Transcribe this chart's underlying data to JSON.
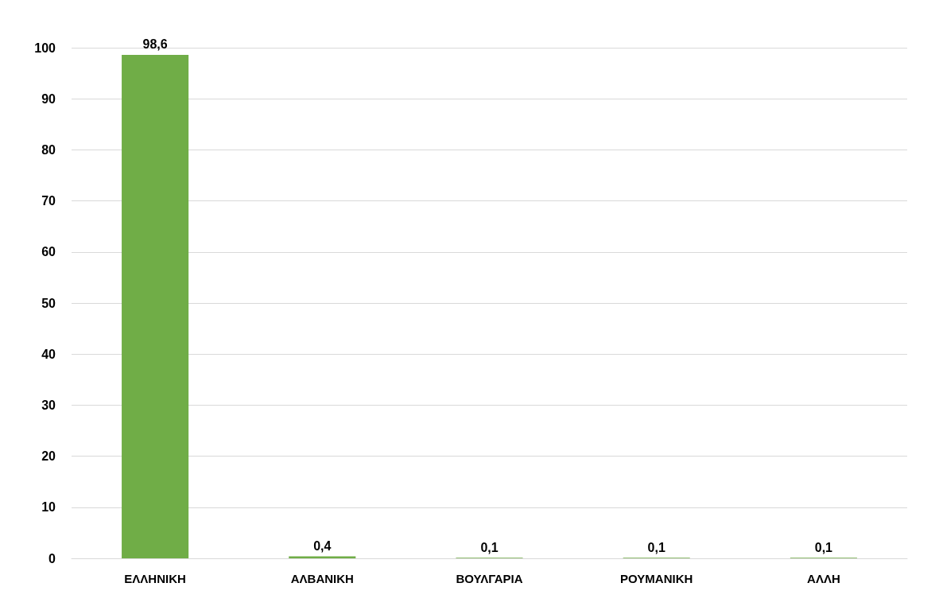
{
  "chart_data": {
    "type": "bar",
    "categories": [
      "ΕΛΛΗΝΙΚΗ",
      "ΑΛΒΑΝΙΚΗ",
      "ΒΟΥΛΓΑΡΙΑ",
      "ΡΟΥΜΑΝΙΚΗ",
      "ΑΛΛΗ"
    ],
    "values": [
      98.6,
      0.4,
      0.1,
      0.1,
      0.1
    ],
    "value_labels": [
      "98,6",
      "0,4",
      "0,1",
      "0,1",
      "0,1"
    ],
    "color": "#70ad47",
    "ylim": [
      0,
      100
    ],
    "yticks": [
      0,
      10,
      20,
      30,
      40,
      50,
      60,
      70,
      80,
      90,
      100
    ],
    "grid": "y"
  }
}
